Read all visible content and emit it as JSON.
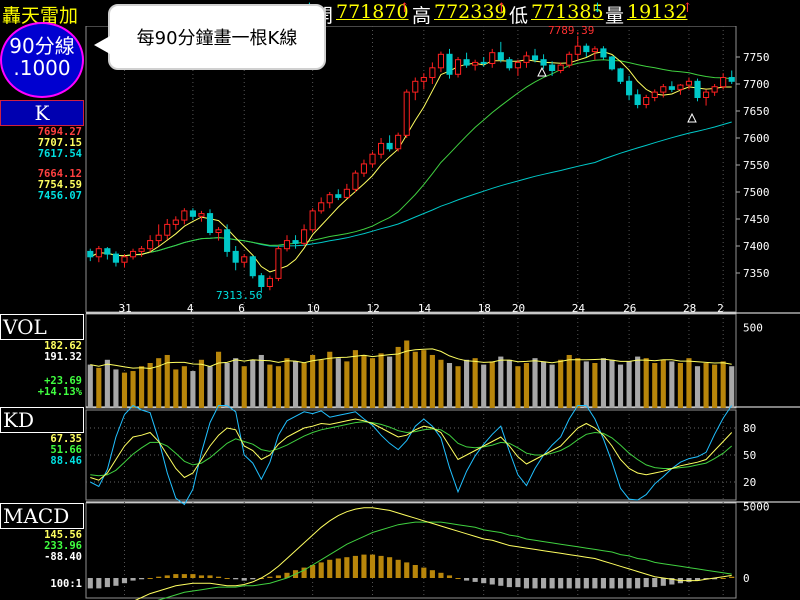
{
  "header": {
    "title": "轟天雷加",
    "price_value": "771868",
    "open_label": "開",
    "open_value": "771870",
    "high_label": "高",
    "high_value": "772339",
    "low_label": "低",
    "low_value": "771385",
    "volume_label": "量",
    "volume_value": "19132"
  },
  "badge": {
    "line1": "90分線",
    "line2": ".1000"
  },
  "tooltip": {
    "text": "每90分鐘畫一根K線"
  },
  "panels": {
    "k": {
      "label": "K",
      "values": [
        "7694.27",
        "7707.15",
        "7617.54",
        "7664.12",
        "7754.59",
        "7456.07"
      ]
    },
    "vol": {
      "label": "VOL",
      "values": [
        "182.62",
        "191.32",
        "+23.69",
        "+14.13%"
      ]
    },
    "kd": {
      "label": "KD",
      "values": [
        "67.35",
        "51.66",
        "88.46"
      ]
    },
    "macd": {
      "label": "MACD",
      "values": [
        "145.56",
        "233.96",
        "-88.40"
      ],
      "scale": "100:1"
    }
  },
  "colors": {
    "up": "#ff2020",
    "down": "#00c8c8",
    "vol_up": "#b8860b",
    "vol_down": "#a8a8a8",
    "ma_short": "#ffff60",
    "ma_mid": "#40d040",
    "ma_long": "#00c8c8"
  },
  "chart_data": {
    "type": "candlestick",
    "x_tick_labels": [
      "31",
      "4",
      "6",
      "10",
      "12",
      "14",
      "18",
      "20",
      "24",
      "26",
      "28",
      "2"
    ],
    "price_axis": [
      7750,
      7700,
      7650,
      7600,
      7550,
      7500,
      7450,
      7400,
      7350
    ],
    "volume_axis": [
      500
    ],
    "kd_axis": [
      80,
      50,
      20
    ],
    "macd_axis": [
      5000,
      0
    ],
    "annotations": [
      "7789.39",
      "7313.56"
    ],
    "price_range": [
      7300,
      7800
    ],
    "candles": [
      [
        7390,
        7395,
        7372,
        7380
      ],
      [
        7380,
        7400,
        7370,
        7395
      ],
      [
        7395,
        7398,
        7375,
        7385
      ],
      [
        7385,
        7390,
        7362,
        7370
      ],
      [
        7370,
        7385,
        7360,
        7380
      ],
      [
        7380,
        7395,
        7375,
        7390
      ],
      [
        7390,
        7400,
        7380,
        7395
      ],
      [
        7395,
        7420,
        7388,
        7410
      ],
      [
        7410,
        7440,
        7400,
        7420
      ],
      [
        7420,
        7450,
        7412,
        7440
      ],
      [
        7440,
        7455,
        7430,
        7448
      ],
      [
        7448,
        7470,
        7440,
        7465
      ],
      [
        7465,
        7470,
        7448,
        7455
      ],
      [
        7455,
        7465,
        7445,
        7460
      ],
      [
        7460,
        7468,
        7420,
        7425
      ],
      [
        7425,
        7435,
        7410,
        7430
      ],
      [
        7430,
        7440,
        7380,
        7390
      ],
      [
        7390,
        7400,
        7355,
        7370
      ],
      [
        7370,
        7385,
        7360,
        7380
      ],
      [
        7380,
        7382,
        7340,
        7345
      ],
      [
        7345,
        7350,
        7313,
        7325
      ],
      [
        7325,
        7345,
        7318,
        7340
      ],
      [
        7340,
        7400,
        7335,
        7395
      ],
      [
        7395,
        7420,
        7390,
        7410
      ],
      [
        7410,
        7420,
        7395,
        7405
      ],
      [
        7405,
        7440,
        7400,
        7430
      ],
      [
        7430,
        7470,
        7425,
        7465
      ],
      [
        7465,
        7490,
        7460,
        7480
      ],
      [
        7480,
        7500,
        7470,
        7495
      ],
      [
        7495,
        7505,
        7485,
        7490
      ],
      [
        7490,
        7515,
        7488,
        7505
      ],
      [
        7505,
        7540,
        7500,
        7535
      ],
      [
        7535,
        7560,
        7528,
        7552
      ],
      [
        7552,
        7575,
        7545,
        7570
      ],
      [
        7570,
        7600,
        7562,
        7590
      ],
      [
        7590,
        7605,
        7575,
        7580
      ],
      [
        7580,
        7610,
        7575,
        7605
      ],
      [
        7605,
        7690,
        7600,
        7685
      ],
      [
        7685,
        7712,
        7670,
        7705
      ],
      [
        7705,
        7720,
        7690,
        7712
      ],
      [
        7712,
        7740,
        7700,
        7730
      ],
      [
        7730,
        7760,
        7722,
        7755
      ],
      [
        7755,
        7765,
        7710,
        7718
      ],
      [
        7718,
        7750,
        7712,
        7745
      ],
      [
        7745,
        7758,
        7730,
        7735
      ],
      [
        7735,
        7745,
        7725,
        7740
      ],
      [
        7740,
        7750,
        7732,
        7738
      ],
      [
        7738,
        7765,
        7730,
        7758
      ],
      [
        7758,
        7778,
        7740,
        7745
      ],
      [
        7745,
        7750,
        7725,
        7730
      ],
      [
        7730,
        7745,
        7715,
        7740
      ],
      [
        7740,
        7760,
        7730,
        7752
      ],
      [
        7752,
        7765,
        7740,
        7745
      ],
      [
        7745,
        7755,
        7728,
        7735
      ],
      [
        7735,
        7742,
        7715,
        7725
      ],
      [
        7725,
        7740,
        7720,
        7735
      ],
      [
        7735,
        7760,
        7730,
        7755
      ],
      [
        7755,
        7789,
        7745,
        7770
      ],
      [
        7770,
        7775,
        7750,
        7760
      ],
      [
        7760,
        7770,
        7745,
        7765
      ],
      [
        7765,
        7770,
        7745,
        7750
      ],
      [
        7750,
        7752,
        7725,
        7728
      ],
      [
        7728,
        7730,
        7700,
        7705
      ],
      [
        7705,
        7715,
        7670,
        7680
      ],
      [
        7680,
        7690,
        7655,
        7662
      ],
      [
        7662,
        7680,
        7655,
        7675
      ],
      [
        7675,
        7690,
        7668,
        7685
      ],
      [
        7685,
        7700,
        7675,
        7695
      ],
      [
        7695,
        7705,
        7685,
        7690
      ],
      [
        7690,
        7700,
        7680,
        7698
      ],
      [
        7698,
        7712,
        7690,
        7705
      ],
      [
        7705,
        7710,
        7668,
        7675
      ],
      [
        7675,
        7690,
        7660,
        7685
      ],
      [
        7685,
        7700,
        7678,
        7695
      ],
      [
        7695,
        7720,
        7690,
        7712
      ],
      [
        7712,
        7725,
        7700,
        7705
      ]
    ],
    "volume": [
      270,
      250,
      300,
      240,
      220,
      230,
      260,
      280,
      310,
      330,
      240,
      260,
      230,
      300,
      260,
      350,
      280,
      310,
      260,
      300,
      330,
      270,
      260,
      310,
      290,
      280,
      330,
      300,
      350,
      310,
      290,
      360,
      330,
      310,
      340,
      320,
      380,
      420,
      350,
      360,
      330,
      300,
      280,
      260,
      300,
      310,
      270,
      290,
      320,
      300,
      260,
      280,
      310,
      290,
      270,
      300,
      330,
      310,
      290,
      280,
      310,
      300,
      270,
      290,
      320,
      310,
      280,
      300,
      290,
      280,
      310,
      260,
      280,
      270,
      290,
      260
    ],
    "k_values": [
      25,
      22,
      30,
      45,
      60,
      70,
      72,
      75,
      65,
      50,
      35,
      25,
      30,
      45,
      60,
      72,
      80,
      78,
      60,
      55,
      45,
      50,
      62,
      70,
      75,
      80,
      82,
      85,
      84,
      86,
      88,
      90,
      88,
      85,
      80,
      75,
      70,
      72,
      78,
      82,
      80,
      75,
      60,
      45,
      50,
      55,
      60,
      65,
      70,
      60,
      48,
      40,
      45,
      50,
      55,
      60,
      70,
      80,
      85,
      80,
      72,
      60,
      45,
      35,
      30,
      28,
      30,
      32,
      35,
      38,
      40,
      42,
      45,
      55,
      65,
      75
    ],
    "d_values": [
      28,
      27,
      28,
      33,
      42,
      51,
      58,
      64,
      64,
      60,
      52,
      43,
      39,
      41,
      47,
      55,
      63,
      68,
      65,
      62,
      56,
      54,
      57,
      61,
      66,
      71,
      75,
      78,
      80,
      82,
      84,
      86,
      87,
      86,
      84,
      81,
      77,
      75,
      76,
      78,
      79,
      78,
      72,
      63,
      59,
      58,
      59,
      61,
      64,
      63,
      58,
      52,
      50,
      50,
      52,
      55,
      60,
      67,
      73,
      75,
      74,
      69,
      61,
      52,
      45,
      39,
      36,
      35,
      35,
      36,
      37,
      39,
      41,
      46,
      52,
      60
    ],
    "j_values": [
      20,
      15,
      34,
      70,
      95,
      108,
      100,
      97,
      67,
      30,
      2,
      -10,
      12,
      53,
      86,
      105,
      114,
      98,
      50,
      41,
      23,
      42,
      72,
      88,
      93,
      98,
      96,
      99,
      92,
      94,
      96,
      98,
      90,
      83,
      72,
      63,
      56,
      66,
      82,
      90,
      82,
      69,
      36,
      9,
      32,
      49,
      62,
      73,
      82,
      54,
      28,
      16,
      35,
      50,
      61,
      70,
      90,
      106,
      109,
      90,
      68,
      42,
      13,
      1,
      0,
      6,
      18,
      26,
      35,
      42,
      46,
      48,
      53,
      73,
      91,
      105
    ],
    "macd_hist": [
      -8,
      -8,
      -7,
      -6,
      -4,
      -2,
      -1,
      0,
      1,
      2,
      3,
      3,
      3,
      2,
      2,
      1,
      0,
      -1,
      -2,
      -1,
      0,
      1,
      2,
      4,
      6,
      8,
      10,
      12,
      14,
      15,
      16,
      17,
      18,
      18,
      17,
      16,
      14,
      12,
      10,
      8,
      6,
      4,
      2,
      0,
      -2,
      -3,
      -4,
      -5,
      -6,
      -7,
      -7,
      -8,
      -8,
      -8,
      -8,
      -8,
      -8,
      -8,
      -8,
      -8,
      -8,
      -8,
      -8,
      -8,
      -8,
      -7,
      -7,
      -6,
      -5,
      -4,
      -3,
      -2,
      -1,
      -1,
      0,
      1
    ],
    "macd_dif": [
      -30,
      -29,
      -27,
      -25,
      -22,
      -18,
      -15,
      -12,
      -10,
      -8,
      -6,
      -5,
      -4,
      -4,
      -4,
      -5,
      -6,
      -6,
      -5,
      -3,
      0,
      4,
      9,
      15,
      21,
      27,
      33,
      39,
      44,
      48,
      51,
      53,
      54,
      54,
      53,
      52,
      50,
      48,
      46,
      44,
      42,
      40,
      38,
      36,
      34,
      32,
      30,
      29,
      27,
      25,
      24,
      23,
      22,
      21,
      20,
      19,
      18,
      17,
      16,
      15,
      13,
      11,
      9,
      7,
      5,
      3,
      1,
      0,
      -1,
      -2,
      -2,
      -2,
      -1,
      0,
      1,
      2
    ],
    "macd_signal": [
      -24,
      -24,
      -24,
      -23,
      -23,
      -22,
      -20,
      -19,
      -17,
      -15,
      -13,
      -11,
      -10,
      -9,
      -8,
      -7,
      -7,
      -7,
      -6,
      -6,
      -5,
      -4,
      -2,
      0,
      3,
      6,
      10,
      14,
      18,
      22,
      26,
      29,
      32,
      35,
      37,
      39,
      41,
      42,
      43,
      43,
      43,
      43,
      42,
      41,
      40,
      39,
      37,
      36,
      35,
      33,
      32,
      30,
      29,
      28,
      27,
      26,
      25,
      24,
      23,
      22,
      21,
      20,
      18,
      17,
      15,
      14,
      12,
      11,
      10,
      9,
      8,
      7,
      6,
      5,
      4,
      3
    ]
  }
}
